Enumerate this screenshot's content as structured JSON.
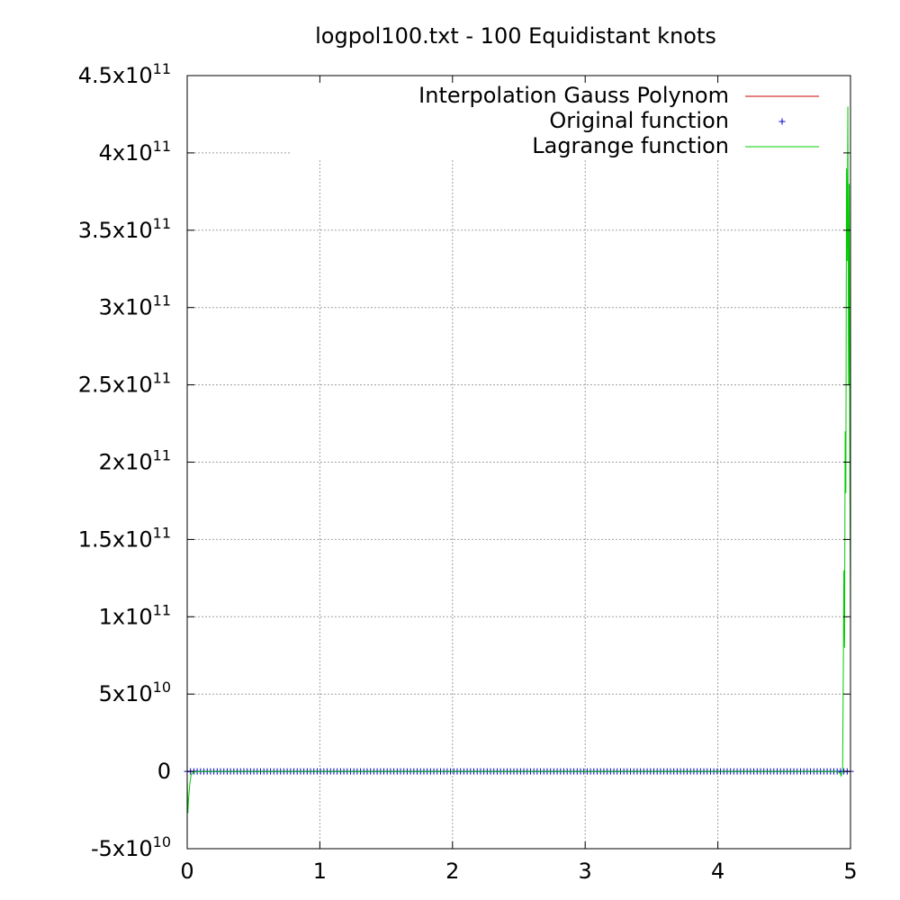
{
  "chart_data": {
    "type": "line",
    "title": "logpol100.txt - 100 Equidistant knots",
    "xlabel": "",
    "ylabel": "",
    "xlim": [
      0,
      5
    ],
    "ylim": [
      -50000000000,
      450000000000
    ],
    "grid": true,
    "legend_position": "top-right",
    "x_ticks": [
      {
        "value": 0,
        "label": "0"
      },
      {
        "value": 1,
        "label": "1"
      },
      {
        "value": 2,
        "label": "2"
      },
      {
        "value": 3,
        "label": "3"
      },
      {
        "value": 4,
        "label": "4"
      },
      {
        "value": 5,
        "label": "5"
      }
    ],
    "y_ticks": [
      {
        "value": -50000000000,
        "mantissa": "-5x10",
        "exp": "10"
      },
      {
        "value": 0,
        "mantissa": "0",
        "exp": ""
      },
      {
        "value": 50000000000,
        "mantissa": "5x10",
        "exp": "10"
      },
      {
        "value": 100000000000,
        "mantissa": "1x10",
        "exp": "11"
      },
      {
        "value": 150000000000,
        "mantissa": "1.5x10",
        "exp": "11"
      },
      {
        "value": 200000000000,
        "mantissa": "2x10",
        "exp": "11"
      },
      {
        "value": 250000000000,
        "mantissa": "2.5x10",
        "exp": "11"
      },
      {
        "value": 300000000000,
        "mantissa": "3x10",
        "exp": "11"
      },
      {
        "value": 350000000000,
        "mantissa": "3.5x10",
        "exp": "11"
      },
      {
        "value": 400000000000,
        "mantissa": "4x10",
        "exp": "11"
      },
      {
        "value": 450000000000,
        "mantissa": "4.5x10",
        "exp": "11"
      }
    ],
    "series": [
      {
        "name": "Interpolation Gauss Polynom",
        "style": "line",
        "color": "#cc0000",
        "x": [
          0,
          5
        ],
        "y": [
          0,
          0
        ]
      },
      {
        "name": "Original function",
        "style": "points",
        "marker": "plus",
        "color": "#0000cc",
        "x_start": 0,
        "x_end": 5,
        "count": 200,
        "y_constant": 0
      },
      {
        "name": "Lagrange function",
        "style": "line",
        "color": "#00cc00",
        "x": [
          0,
          0.005,
          0.01,
          0.02,
          0.03,
          0.05,
          0.08,
          0.1,
          0.5,
          4.5,
          4.9,
          4.92,
          4.93,
          4.94,
          4.945,
          4.95,
          4.955,
          4.96,
          4.965,
          4.97,
          4.975,
          4.98,
          4.985,
          4.99,
          4.995,
          5
        ],
        "y": [
          -5000000000,
          -27000000000,
          -18000000000,
          -8000000000,
          -2000000000,
          -500000000,
          0,
          0,
          0,
          0,
          0,
          -1000000000,
          -3000000000,
          0,
          50000000000,
          130000000000,
          80000000000,
          220000000000,
          180000000000,
          390000000000,
          330000000000,
          430000000000,
          250000000000,
          380000000000,
          200000000000,
          100000000000
        ]
      }
    ]
  }
}
